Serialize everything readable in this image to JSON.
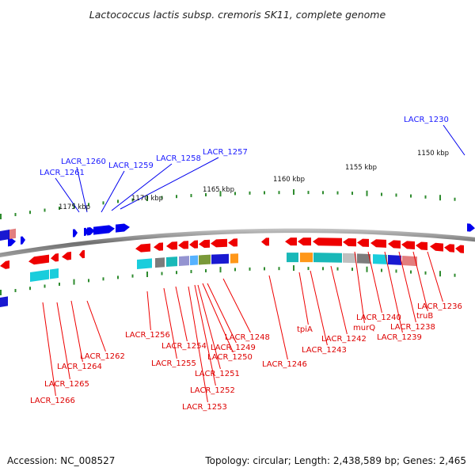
{
  "title": "Lactococcus lactis subsp. cremoris SK11, complete genome",
  "footer": {
    "accession": "Accession: NC_008527",
    "summary": "Topology: circular; Length: 2,438,589 bp; Genes: 2,465"
  },
  "colors": {
    "forward_gene": "#0000ee",
    "reverse_gene": "#ee0000",
    "forward_label": "#1a1aff",
    "reverse_label": "#dd0000",
    "backbone": "#777777",
    "tick": "#2e8b2e",
    "cog_cyan": "#00c8d8",
    "cog_teal": "#00b0b0",
    "cog_orange": "#ff8c00",
    "cog_gray": "#6e6e6e",
    "cog_lightgray": "#b8b8b8",
    "cog_blue": "#0000cc",
    "cog_pink": "#e07070",
    "cog_olive": "#6b8e23",
    "cog_lavender": "#8888cc",
    "cog_lightblue": "#44aaff",
    "cog_red": "#ee2222"
  },
  "scale_labels": [
    "1150 kbp",
    "1155 kbp",
    "1160 kbp",
    "1165 kbp",
    "1170 kbp",
    "1175 kbp"
  ],
  "forward_labels": [
    "LACR_1230",
    "LACR_1257",
    "LACR_1258",
    "LACR_1259",
    "LACR_1260",
    "LACR_1261"
  ],
  "reverse_labels": [
    "LACR_1236",
    "truB",
    "LACR_1238",
    "LACR_1239",
    "LACR_1240",
    "murQ",
    "LACR_1242",
    "LACR_1243",
    "tpiA",
    "LACR_1246",
    "LACR_1248",
    "LACR_1249",
    "LACR_1250",
    "LACR_1251",
    "LACR_1252",
    "LACR_1253",
    "LACR_1254",
    "LACR_1255",
    "LACR_1256",
    "LACR_1262",
    "LACR_1264",
    "LACR_1265",
    "LACR_1266"
  ]
}
